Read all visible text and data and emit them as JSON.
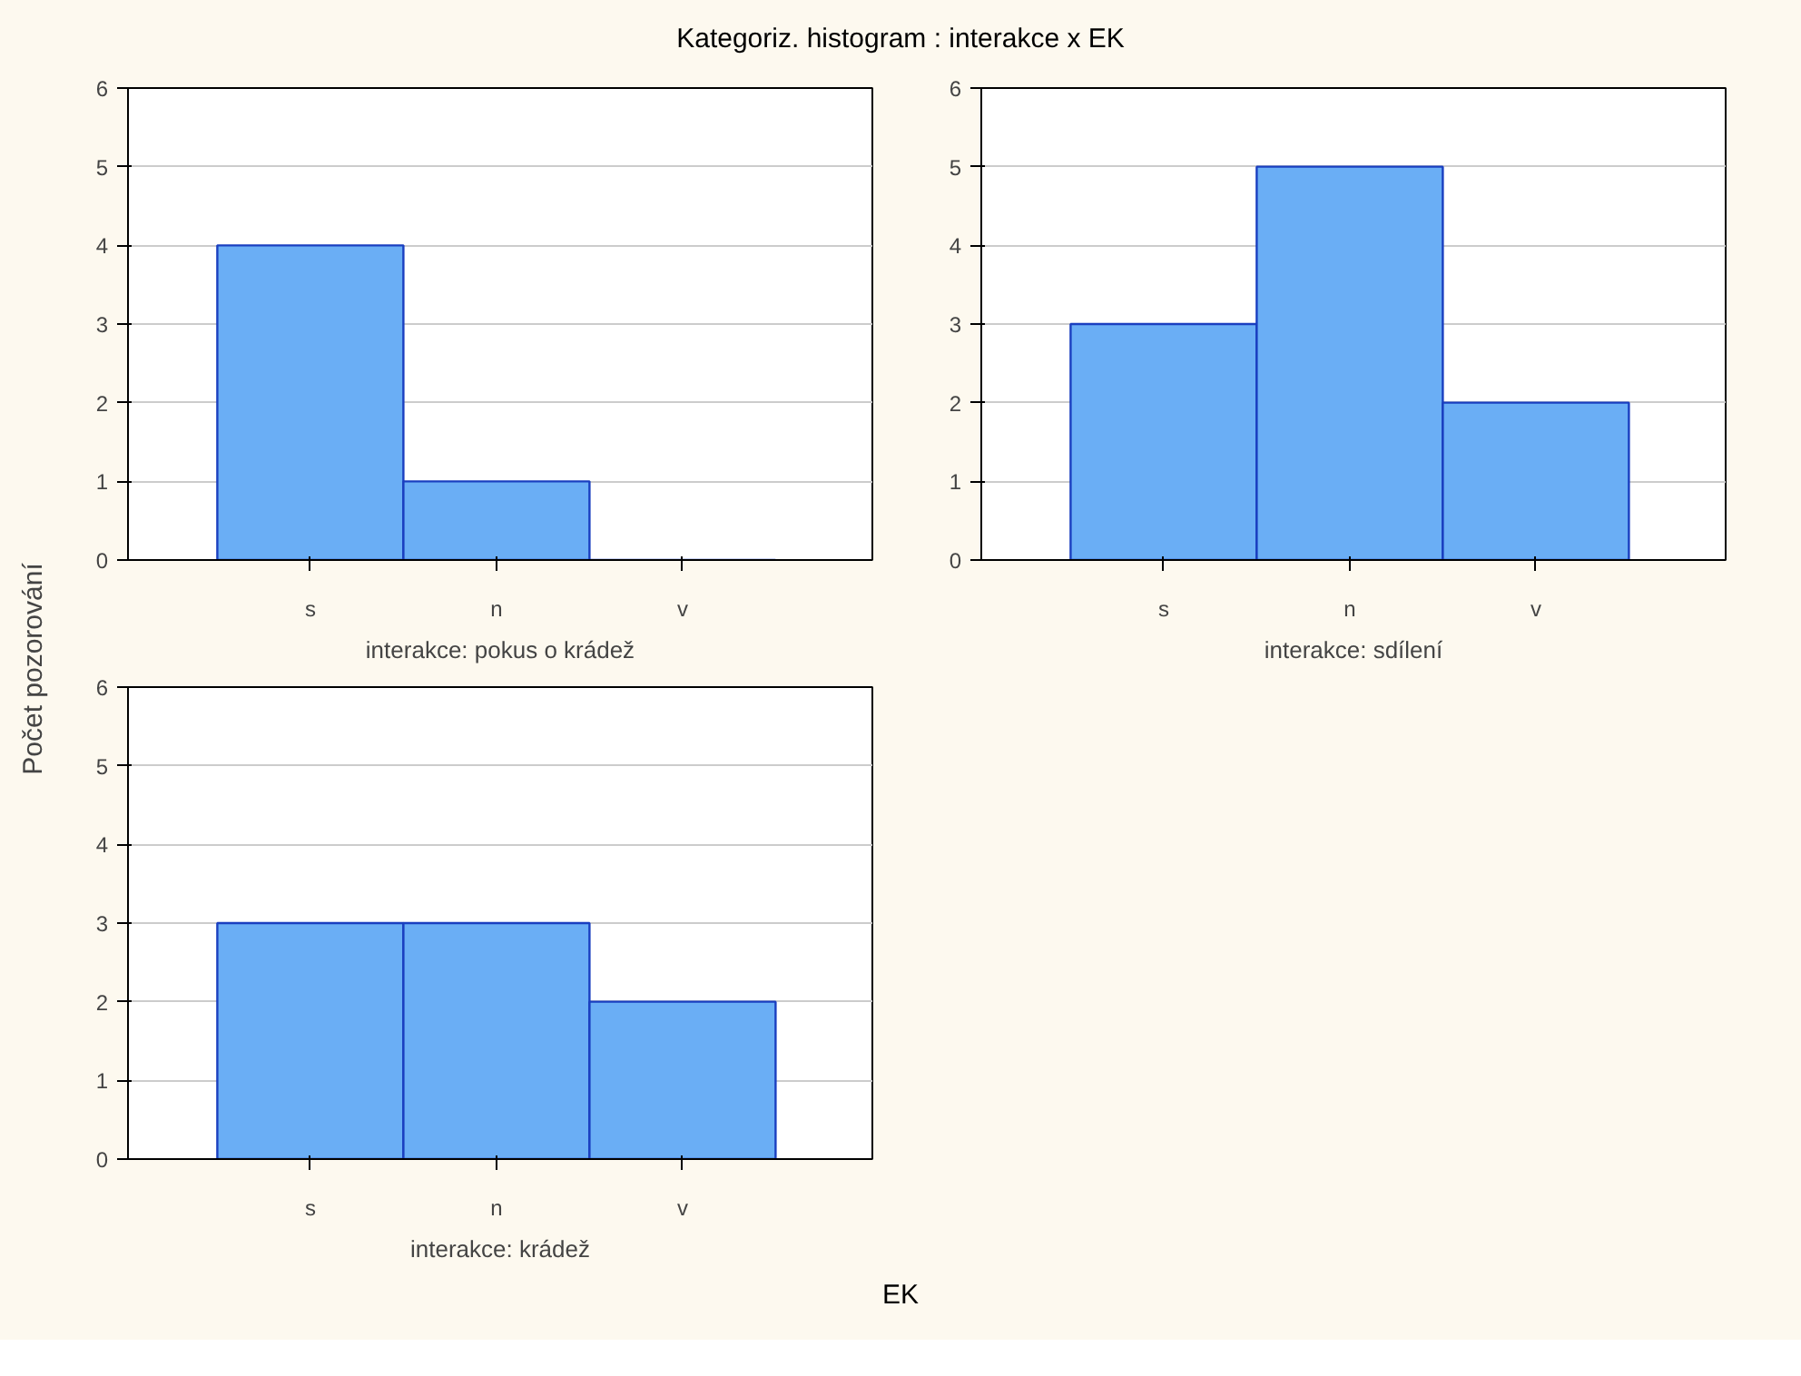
{
  "chart_data": [
    {
      "type": "bar",
      "title": "Kategoriz. histogram : interakce x EK",
      "ylabel": "Počet pozorování",
      "xlabel": "interakce: pokus o krádež",
      "categories": [
        "s",
        "n",
        "v"
      ],
      "values": [
        4,
        1,
        0
      ],
      "color": "#6aaef5",
      "ylim": [
        0,
        6
      ],
      "yticks": [
        0,
        1,
        2,
        3,
        4,
        5,
        6
      ],
      "grid": "y"
    },
    {
      "type": "bar",
      "xlabel": "interakce: sdílení",
      "categories": [
        "s",
        "n",
        "v"
      ],
      "values": [
        3,
        5,
        2
      ],
      "color": "#6aaef5",
      "ylim": [
        0,
        6
      ],
      "yticks": [
        0,
        1,
        2,
        3,
        4,
        5,
        6
      ],
      "grid": "y"
    },
    {
      "type": "bar",
      "xlabel": "interakce: krádež",
      "annotations": [
        "EK"
      ],
      "categories": [
        "s",
        "n",
        "v"
      ],
      "values": [
        3,
        3,
        2
      ],
      "color": "#6aaef5",
      "ylim": [
        0,
        6
      ],
      "yticks": [
        0,
        1,
        2,
        3,
        4,
        5,
        6
      ],
      "grid": "y"
    }
  ]
}
